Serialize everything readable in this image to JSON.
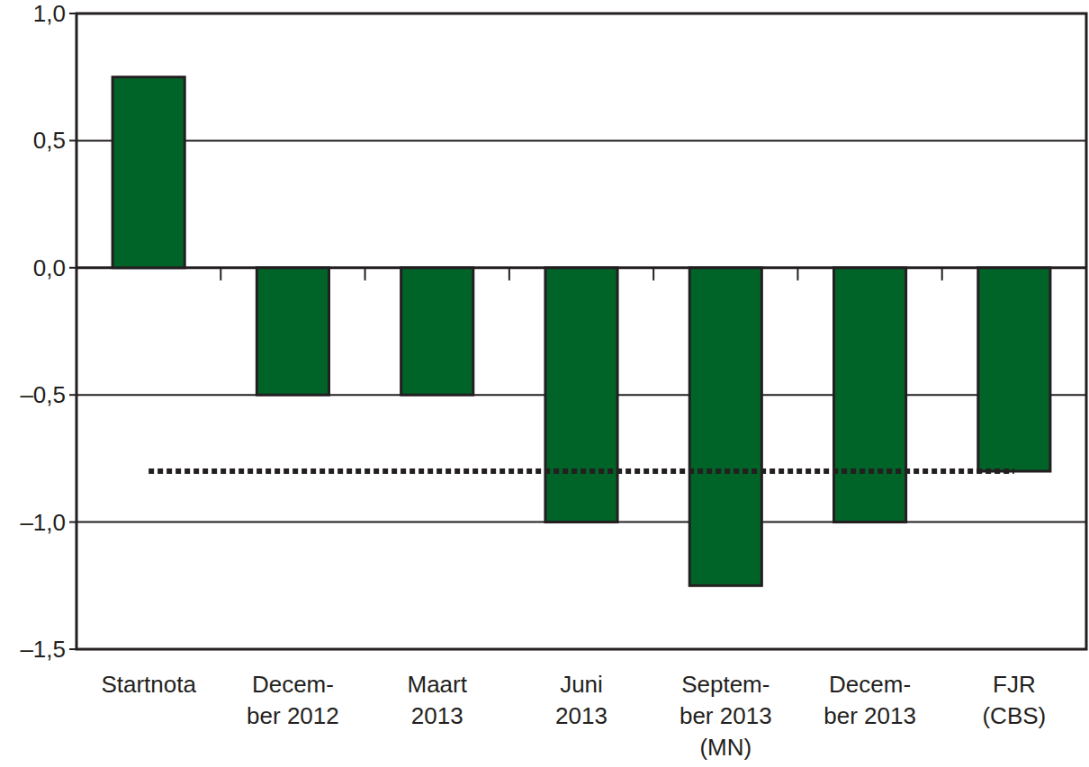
{
  "chart_data": {
    "type": "bar",
    "categories": [
      "Startnota",
      "Decem-\nber 2012",
      "Maart\n2013",
      "Juni\n2013",
      "Septem-\nber 2013\n(MN)",
      "Decem-\nber 2013",
      "FJR\n(CBS)"
    ],
    "series": [
      {
        "type": "bar",
        "color": "#006428",
        "values": [
          0.75,
          -0.5,
          -0.5,
          -1.0,
          -1.25,
          -1.0,
          -0.8
        ]
      },
      {
        "type": "line",
        "line_style": "dotted",
        "color": "#231f20",
        "values": [
          -0.8,
          -0.8,
          -0.8,
          -0.8,
          -0.8,
          -0.8,
          -0.8
        ]
      }
    ],
    "ylim": [
      -1.5,
      1.0
    ],
    "yticks": [
      {
        "value": -1.5,
        "label": "–1,5"
      },
      {
        "value": -1.0,
        "label": "–1,0"
      },
      {
        "value": -0.5,
        "label": "–0,5"
      },
      {
        "value": 0.0,
        "label": "0,0"
      },
      {
        "value": 0.5,
        "label": "0,5"
      },
      {
        "value": 1.0,
        "label": "1,0"
      }
    ],
    "grid": true
  }
}
